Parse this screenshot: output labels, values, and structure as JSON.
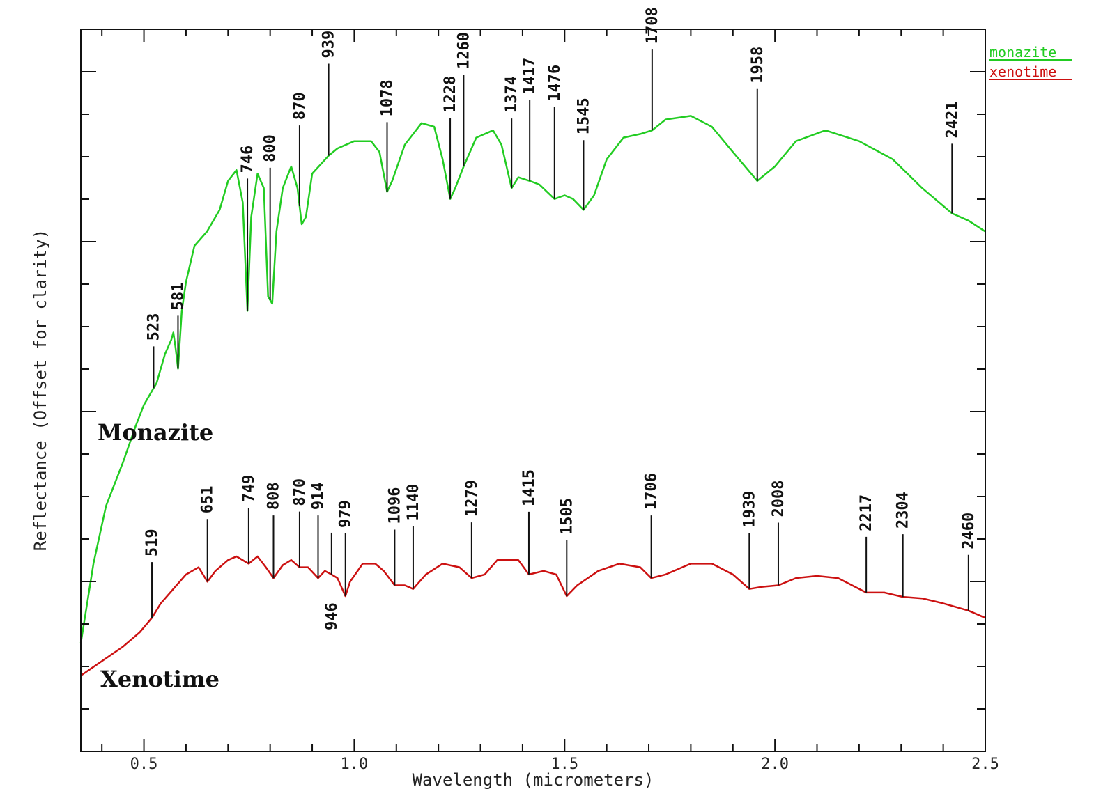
{
  "chart_data": {
    "type": "line",
    "xlabel": "Wavelength (micrometers)",
    "ylabel": "Reflectance (Offset for clarity)",
    "xlim": [
      0.35,
      2.5
    ],
    "ylim": [
      0,
      1
    ],
    "x_ticks": [
      "0.5",
      "1.0",
      "1.5",
      "2.0",
      "2.5"
    ],
    "x_tick_values": [
      0.5,
      1.0,
      1.5,
      2.0,
      2.5
    ],
    "legend": {
      "placement": "top-right, outside plot",
      "entries": [
        {
          "label": "monazite",
          "color": "#22cc22"
        },
        {
          "label": "xenotime",
          "color": "#cc1111"
        }
      ]
    },
    "series": [
      {
        "name": "monazite",
        "label": "Monazite",
        "color": "#22cc22",
        "points": [
          [
            0.35,
            0.15
          ],
          [
            0.38,
            0.26
          ],
          [
            0.41,
            0.34
          ],
          [
            0.45,
            0.4
          ],
          [
            0.48,
            0.45
          ],
          [
            0.5,
            0.48
          ],
          [
            0.52,
            0.5
          ],
          [
            0.53,
            0.51
          ],
          [
            0.55,
            0.55
          ],
          [
            0.565,
            0.57
          ],
          [
            0.57,
            0.58
          ],
          [
            0.575,
            0.56
          ],
          [
            0.581,
            0.53
          ],
          [
            0.59,
            0.61
          ],
          [
            0.6,
            0.65
          ],
          [
            0.62,
            0.7
          ],
          [
            0.65,
            0.72
          ],
          [
            0.68,
            0.75
          ],
          [
            0.7,
            0.79
          ],
          [
            0.72,
            0.805
          ],
          [
            0.735,
            0.76
          ],
          [
            0.746,
            0.61
          ],
          [
            0.755,
            0.74
          ],
          [
            0.77,
            0.8
          ],
          [
            0.785,
            0.78
          ],
          [
            0.795,
            0.63
          ],
          [
            0.805,
            0.62
          ],
          [
            0.815,
            0.72
          ],
          [
            0.83,
            0.78
          ],
          [
            0.85,
            0.81
          ],
          [
            0.865,
            0.78
          ],
          [
            0.875,
            0.73
          ],
          [
            0.885,
            0.74
          ],
          [
            0.9,
            0.8
          ],
          [
            0.939,
            0.825
          ],
          [
            0.96,
            0.835
          ],
          [
            1.0,
            0.845
          ],
          [
            1.04,
            0.845
          ],
          [
            1.06,
            0.83
          ],
          [
            1.078,
            0.775
          ],
          [
            1.09,
            0.79
          ],
          [
            1.12,
            0.84
          ],
          [
            1.16,
            0.87
          ],
          [
            1.19,
            0.865
          ],
          [
            1.21,
            0.82
          ],
          [
            1.228,
            0.765
          ],
          [
            1.24,
            0.78
          ],
          [
            1.26,
            0.81
          ],
          [
            1.29,
            0.85
          ],
          [
            1.33,
            0.86
          ],
          [
            1.35,
            0.84
          ],
          [
            1.374,
            0.78
          ],
          [
            1.39,
            0.795
          ],
          [
            1.417,
            0.79
          ],
          [
            1.44,
            0.785
          ],
          [
            1.476,
            0.765
          ],
          [
            1.5,
            0.77
          ],
          [
            1.52,
            0.765
          ],
          [
            1.545,
            0.75
          ],
          [
            1.57,
            0.77
          ],
          [
            1.6,
            0.82
          ],
          [
            1.64,
            0.85
          ],
          [
            1.68,
            0.855
          ],
          [
            1.708,
            0.86
          ],
          [
            1.74,
            0.875
          ],
          [
            1.8,
            0.88
          ],
          [
            1.85,
            0.865
          ],
          [
            1.9,
            0.83
          ],
          [
            1.958,
            0.79
          ],
          [
            2.0,
            0.81
          ],
          [
            2.05,
            0.845
          ],
          [
            2.12,
            0.86
          ],
          [
            2.2,
            0.845
          ],
          [
            2.28,
            0.82
          ],
          [
            2.35,
            0.78
          ],
          [
            2.421,
            0.745
          ],
          [
            2.46,
            0.735
          ],
          [
            2.5,
            0.72
          ]
        ],
        "band_labels": [
          "523",
          "581",
          "746",
          "800",
          "870",
          "939",
          "1078",
          "1228",
          "1260",
          "1374",
          "1417",
          "1476",
          "1545",
          "1708",
          "1958",
          "2421"
        ],
        "band_positions": [
          0.523,
          0.581,
          0.746,
          0.8,
          0.87,
          0.939,
          1.078,
          1.228,
          1.26,
          1.374,
          1.417,
          1.476,
          1.545,
          1.708,
          1.958,
          2.421
        ]
      },
      {
        "name": "xenotime",
        "label": "Xenotime",
        "color": "#cc1111",
        "points": [
          [
            0.35,
            0.105
          ],
          [
            0.4,
            0.125
          ],
          [
            0.45,
            0.145
          ],
          [
            0.49,
            0.165
          ],
          [
            0.519,
            0.185
          ],
          [
            0.54,
            0.205
          ],
          [
            0.57,
            0.225
          ],
          [
            0.6,
            0.245
          ],
          [
            0.63,
            0.255
          ],
          [
            0.651,
            0.235
          ],
          [
            0.67,
            0.25
          ],
          [
            0.7,
            0.265
          ],
          [
            0.72,
            0.27
          ],
          [
            0.749,
            0.26
          ],
          [
            0.77,
            0.27
          ],
          [
            0.79,
            0.255
          ],
          [
            0.808,
            0.24
          ],
          [
            0.83,
            0.258
          ],
          [
            0.85,
            0.265
          ],
          [
            0.87,
            0.255
          ],
          [
            0.89,
            0.255
          ],
          [
            0.914,
            0.24
          ],
          [
            0.93,
            0.25
          ],
          [
            0.946,
            0.245
          ],
          [
            0.96,
            0.24
          ],
          [
            0.979,
            0.215
          ],
          [
            0.99,
            0.235
          ],
          [
            1.02,
            0.26
          ],
          [
            1.05,
            0.26
          ],
          [
            1.07,
            0.25
          ],
          [
            1.096,
            0.23
          ],
          [
            1.12,
            0.23
          ],
          [
            1.14,
            0.225
          ],
          [
            1.17,
            0.245
          ],
          [
            1.21,
            0.26
          ],
          [
            1.25,
            0.255
          ],
          [
            1.279,
            0.24
          ],
          [
            1.31,
            0.245
          ],
          [
            1.34,
            0.265
          ],
          [
            1.39,
            0.265
          ],
          [
            1.415,
            0.245
          ],
          [
            1.45,
            0.25
          ],
          [
            1.48,
            0.245
          ],
          [
            1.505,
            0.215
          ],
          [
            1.53,
            0.23
          ],
          [
            1.58,
            0.25
          ],
          [
            1.63,
            0.26
          ],
          [
            1.68,
            0.255
          ],
          [
            1.706,
            0.24
          ],
          [
            1.74,
            0.245
          ],
          [
            1.8,
            0.26
          ],
          [
            1.85,
            0.26
          ],
          [
            1.9,
            0.245
          ],
          [
            1.939,
            0.225
          ],
          [
            1.97,
            0.228
          ],
          [
            2.008,
            0.23
          ],
          [
            2.05,
            0.24
          ],
          [
            2.1,
            0.243
          ],
          [
            2.15,
            0.24
          ],
          [
            2.217,
            0.22
          ],
          [
            2.26,
            0.22
          ],
          [
            2.304,
            0.214
          ],
          [
            2.35,
            0.212
          ],
          [
            2.4,
            0.205
          ],
          [
            2.46,
            0.195
          ],
          [
            2.5,
            0.185
          ]
        ],
        "band_labels": [
          "519",
          "651",
          "749",
          "808",
          "870",
          "914",
          "946",
          "979",
          "1096",
          "1140",
          "1279",
          "1415",
          "1505",
          "1706",
          "1939",
          "2008",
          "2217",
          "2304",
          "2460"
        ],
        "band_positions": [
          0.519,
          0.651,
          0.749,
          0.808,
          0.87,
          0.914,
          0.946,
          0.979,
          1.096,
          1.14,
          1.279,
          1.415,
          1.505,
          1.706,
          1.939,
          2.008,
          2.217,
          2.304,
          2.46
        ]
      }
    ]
  }
}
